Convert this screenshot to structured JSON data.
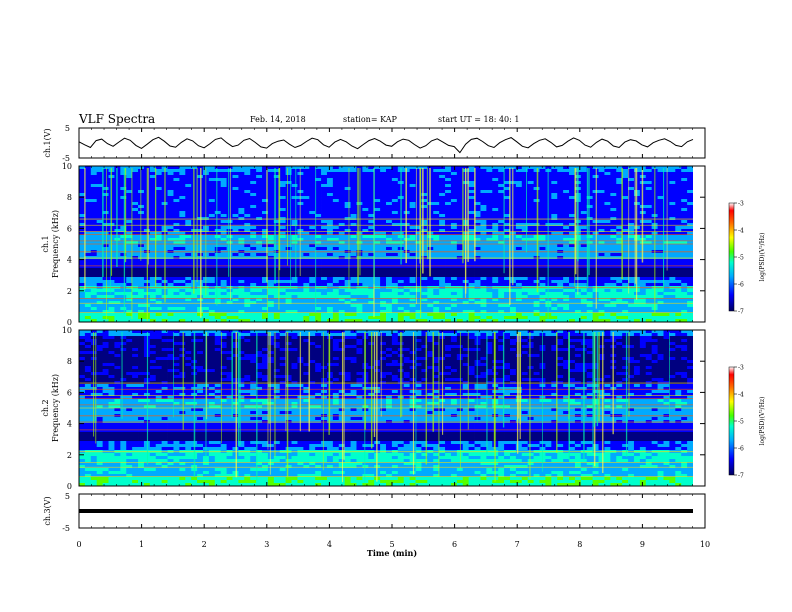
{
  "header": {
    "title": "VLF Spectra",
    "date": "Feb. 14, 2018",
    "station": "station= KAP",
    "start": "start  UT =   18: 40: 1"
  },
  "chart_data": {
    "type": "heatmap",
    "xlabel": "Time  (min)",
    "xlim": [
      0,
      10
    ],
    "xticks": [
      "0",
      "1",
      "2",
      "3",
      "4",
      "5",
      "6",
      "7",
      "8",
      "9",
      "10"
    ],
    "panels": [
      {
        "id": "ch1-waveform",
        "kind": "line",
        "ylabel": "ch.1(V)",
        "ylim": [
          -5,
          5
        ],
        "yticks": [
          "5",
          "-5"
        ],
        "series": [
          {
            "values": [
              0.4,
              -0.6,
              -1.5,
              0.8,
              1.3,
              -0.2,
              -1.1,
              0.3,
              1.6,
              0.9,
              -0.8,
              -1.8,
              -0.4,
              1.1,
              1.9,
              0.6,
              -1.0,
              -1.4,
              0.2,
              1.4,
              0.7,
              -0.9,
              -1.6,
              -0.3,
              1.2,
              1.7,
              0.1,
              -1.2,
              -0.7,
              0.9,
              1.5,
              0.2,
              -1.3,
              -1.7,
              -0.2,
              0.6,
              1.0,
              -0.4,
              -1.5,
              -0.8,
              0.5,
              1.6,
              1.1,
              -0.6,
              -1.4,
              0.3,
              1.2,
              0.4,
              -1.0,
              -1.9,
              -0.5,
              0.8,
              1.5,
              0.6,
              -0.7,
              -1.1,
              0.4,
              1.3,
              0.9,
              -0.5,
              -1.7,
              -0.9,
              0.7,
              1.4,
              0.3,
              -0.8,
              -1.2,
              -3.2,
              -0.4,
              1.2,
              1.6,
              0.5,
              -0.9,
              -1.5,
              0.1,
              1.1,
              1.8,
              0.4,
              -1.1,
              -1.6,
              -0.2,
              0.9,
              1.4,
              0.2,
              -1.3,
              -0.8,
              0.6,
              1.7,
              0.9,
              -0.7,
              -1.4,
              0.2,
              1.3,
              0.6,
              -1.0,
              -1.5,
              0.3,
              1.1,
              0.7,
              -0.6,
              -1.3,
              0.1,
              0.9,
              1.4,
              0.5,
              -0.8,
              -1.2,
              0.4,
              1.2
            ]
          }
        ]
      },
      {
        "id": "ch1-spectrogram",
        "kind": "spectrogram",
        "ylabel_top": "ch.1",
        "ylabel": "Frequency  (kHz)",
        "ylim": [
          0,
          10
        ],
        "yticks": [
          "0",
          "2",
          "4",
          "6",
          "8",
          "10"
        ],
        "colorbar": {
          "label": "log(PSD)(V²/Hz)",
          "ticks": [
            "-3",
            "-4",
            "-5",
            "-6",
            "-7"
          ]
        }
      },
      {
        "id": "ch2-spectrogram",
        "kind": "spectrogram",
        "ylabel_top": "ch.2",
        "ylabel": "Frequency  (kHz)",
        "ylim": [
          0,
          10
        ],
        "yticks": [
          "0",
          "2",
          "4",
          "6",
          "8",
          "10"
        ],
        "colorbar": {
          "label": "log(PSD)(V²/Hz)",
          "ticks": [
            "-3",
            "-4",
            "-5",
            "-6",
            "-7"
          ]
        }
      },
      {
        "id": "ch3-waveform",
        "kind": "line",
        "ylabel": "ch.3(V)",
        "ylim": [
          -5,
          5
        ],
        "yticks": [
          "5",
          "-5"
        ],
        "series": [
          {
            "values": [
              0,
              0
            ]
          }
        ]
      }
    ],
    "colors": {
      "colormap": [
        "#000080",
        "#0000ff",
        "#00aaff",
        "#00ffcc",
        "#55ff00",
        "#ffff00",
        "#ff8800",
        "#ff0000",
        "#ffffff"
      ]
    }
  }
}
